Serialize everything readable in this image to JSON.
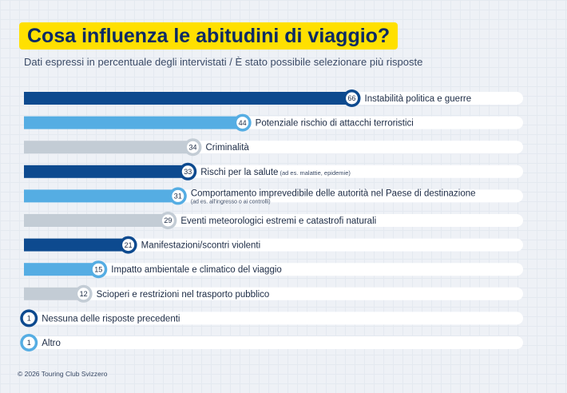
{
  "header": {
    "title": "Cosa influenza le abitudini di viaggio?",
    "subtitle": "Dati espressi in percentuale degli intervistati / È stato possibile selezionare più risposte"
  },
  "footer": {
    "copyright": "© 2026 Touring Club Svizzero"
  },
  "colors": {
    "title_bg": "#ffe000",
    "title_text": "#0b2a64",
    "navy": "#0d4a8f",
    "sky": "#55ade3",
    "grey": "#c3ccd5",
    "track": "#ffffff"
  },
  "chart_data": {
    "type": "bar",
    "orientation": "horizontal",
    "xlim": [
      0,
      100
    ],
    "categories": [
      "Instabilità politica e guerre",
      "Potenziale rischio di attacchi terroristici",
      "Criminalità",
      "Rischi per la salute",
      "Comportamento imprevedibile delle autorità nel Paese di destinazione",
      "Eventi meteorologici estremi e catastrofi naturali",
      "Manifestazioni/scontri violenti",
      "Impatto ambientale e climatico del viaggio",
      "Scioperi e restrizioni nel trasporto pubblico",
      "Nessuna delle risposte precedenti",
      "Altro"
    ],
    "notes": [
      "",
      "",
      "",
      "(ad es. malattie, epidemie)",
      "(ad es. all'ingresso o ai controlli)",
      "",
      "",
      "",
      "",
      "",
      ""
    ],
    "values": [
      66,
      44,
      34,
      33,
      31,
      29,
      21,
      15,
      12,
      1,
      1
    ],
    "color_keys": [
      "navy",
      "sky",
      "grey",
      "navy",
      "sky",
      "grey",
      "navy",
      "sky",
      "grey",
      "navy",
      "sky"
    ]
  }
}
